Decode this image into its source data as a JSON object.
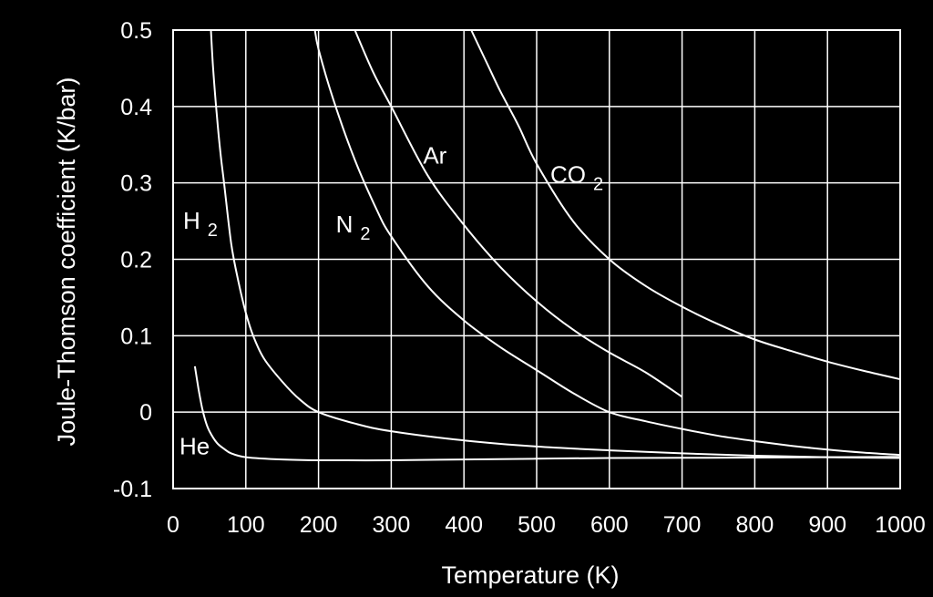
{
  "chart_data": {
    "type": "line",
    "title": "",
    "xlabel": "Temperature (K)",
    "ylabel": "Joule-Thomson coefficient (K/bar)",
    "xlim": [
      0,
      1000
    ],
    "ylim": [
      -0.1,
      0.5
    ],
    "x_ticks": [
      "0",
      "100",
      "200",
      "300",
      "400",
      "500",
      "600",
      "700",
      "800",
      "900",
      "1000"
    ],
    "y_ticks": [
      "-0.1",
      "0",
      "0.1",
      "0.2",
      "0.3",
      "0.4",
      "0.5"
    ],
    "grid": true,
    "line_color": "#ffffff",
    "background_color": "#000000",
    "series": [
      {
        "name": "He",
        "label_main": "He",
        "label_sub": "",
        "points": [
          [
            30,
            0.06
          ],
          [
            35,
            0.03
          ],
          [
            40,
            0.005
          ],
          [
            45,
            -0.013
          ],
          [
            50,
            -0.025
          ],
          [
            60,
            -0.04
          ],
          [
            70,
            -0.048
          ],
          [
            80,
            -0.054
          ],
          [
            100,
            -0.059
          ],
          [
            150,
            -0.062
          ],
          [
            200,
            -0.063
          ],
          [
            300,
            -0.063
          ],
          [
            400,
            -0.062
          ],
          [
            500,
            -0.061
          ],
          [
            600,
            -0.06
          ],
          [
            700,
            -0.0598
          ],
          [
            800,
            -0.0595
          ],
          [
            900,
            -0.059
          ],
          [
            1000,
            -0.0585
          ]
        ]
      },
      {
        "name": "H2",
        "label_main": "H",
        "label_sub": "2",
        "points": [
          [
            52,
            0.5
          ],
          [
            55,
            0.45
          ],
          [
            60,
            0.39
          ],
          [
            65,
            0.34
          ],
          [
            70,
            0.3
          ],
          [
            80,
            0.22
          ],
          [
            90,
            0.17
          ],
          [
            100,
            0.13
          ],
          [
            110,
            0.1
          ],
          [
            125,
            0.07
          ],
          [
            150,
            0.04
          ],
          [
            175,
            0.016
          ],
          [
            200,
            0.0
          ],
          [
            250,
            -0.015
          ],
          [
            300,
            -0.025
          ],
          [
            400,
            -0.037
          ],
          [
            500,
            -0.045
          ],
          [
            600,
            -0.05
          ],
          [
            700,
            -0.054
          ],
          [
            800,
            -0.057
          ],
          [
            900,
            -0.059
          ],
          [
            1000,
            -0.06
          ]
        ]
      },
      {
        "name": "N2",
        "label_main": "N",
        "label_sub": "2",
        "points": [
          [
            195,
            0.5
          ],
          [
            200,
            0.475
          ],
          [
            220,
            0.41
          ],
          [
            250,
            0.33
          ],
          [
            280,
            0.265
          ],
          [
            300,
            0.23
          ],
          [
            350,
            0.165
          ],
          [
            400,
            0.12
          ],
          [
            450,
            0.085
          ],
          [
            500,
            0.055
          ],
          [
            550,
            0.025
          ],
          [
            600,
            0.0
          ],
          [
            650,
            -0.012
          ],
          [
            700,
            -0.022
          ],
          [
            750,
            -0.031
          ],
          [
            800,
            -0.038
          ],
          [
            850,
            -0.044
          ],
          [
            900,
            -0.049
          ],
          [
            950,
            -0.053
          ],
          [
            1000,
            -0.056
          ]
        ]
      },
      {
        "name": "Ar",
        "label_main": "Ar",
        "label_sub": "",
        "points": [
          [
            250,
            0.5
          ],
          [
            275,
            0.445
          ],
          [
            300,
            0.4
          ],
          [
            350,
            0.31
          ],
          [
            400,
            0.245
          ],
          [
            450,
            0.19
          ],
          [
            500,
            0.145
          ],
          [
            550,
            0.108
          ],
          [
            600,
            0.078
          ],
          [
            650,
            0.052
          ],
          [
            700,
            0.02
          ]
        ]
      },
      {
        "name": "CO2",
        "label_main": "CO",
        "label_sub": "2",
        "points": [
          [
            410,
            0.5
          ],
          [
            430,
            0.46
          ],
          [
            450,
            0.42
          ],
          [
            475,
            0.375
          ],
          [
            500,
            0.325
          ],
          [
            550,
            0.25
          ],
          [
            600,
            0.2
          ],
          [
            650,
            0.165
          ],
          [
            700,
            0.138
          ],
          [
            750,
            0.115
          ],
          [
            800,
            0.095
          ],
          [
            850,
            0.08
          ],
          [
            900,
            0.066
          ],
          [
            950,
            0.054
          ],
          [
            1000,
            0.043
          ]
        ]
      }
    ]
  }
}
